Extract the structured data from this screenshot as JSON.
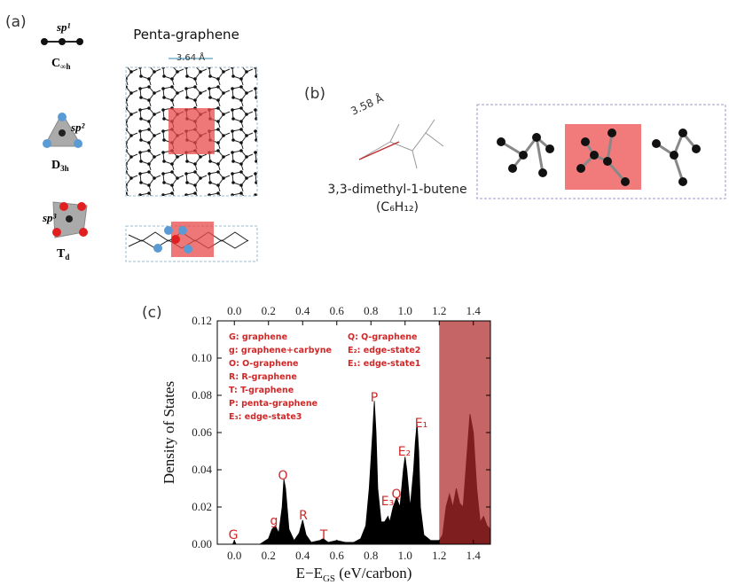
{
  "panel_a": {
    "label": "(a)",
    "hybrids": [
      {
        "sup": "sp¹",
        "sym": "C",
        "sub": "∞h"
      },
      {
        "sup": "sp²",
        "sym": "D",
        "sub": "3h"
      },
      {
        "sup": "sp³",
        "sym": "T",
        "sub": "d"
      }
    ],
    "title": "Penta-graphene",
    "distance": "3.64 Å"
  },
  "panel_b": {
    "label": "(b)",
    "distance": "3.58 Å",
    "molecule": "3,3-dimethyl-1-butene",
    "formula": "(C₆H₁₂)"
  },
  "chart_data": {
    "type": "area",
    "panel_label": "(c)",
    "ylabel": "Density of States",
    "xlabel": {
      "main": "E−E",
      "sub": "GS",
      "rest": " (eV/carbon)"
    },
    "color": "#000000",
    "highlight": [
      1.2,
      1.5
    ],
    "highlight_color": "#b02a2a",
    "xlim": [
      -0.1,
      1.5
    ],
    "ylim": [
      0,
      0.12
    ],
    "xticks": [
      {
        "value": 0,
        "label": "0.0"
      },
      0.2,
      0.4,
      0.6,
      0.8,
      {
        "value": 1,
        "label": "1.0"
      },
      1.2,
      1.4
    ],
    "yticks": [
      {
        "value": 0,
        "label": "0.00"
      },
      {
        "value": 0.02,
        "label": "0.02"
      },
      {
        "value": 0.04,
        "label": "0.04"
      },
      {
        "value": 0.06,
        "label": "0.06"
      },
      {
        "value": 0.08,
        "label": "0.08"
      },
      {
        "value": 0.1,
        "label": "0.10"
      },
      {
        "value": 0.12,
        "label": "0.12"
      }
    ],
    "x": [
      -0.05,
      -0.01,
      0.0,
      0.01,
      0.15,
      0.2,
      0.22,
      0.24,
      0.26,
      0.28,
      0.29,
      0.3,
      0.32,
      0.35,
      0.38,
      0.4,
      0.42,
      0.45,
      0.5,
      0.52,
      0.55,
      0.6,
      0.65,
      0.7,
      0.74,
      0.77,
      0.79,
      0.81,
      0.82,
      0.83,
      0.84,
      0.86,
      0.88,
      0.9,
      0.91,
      0.93,
      0.95,
      0.97,
      0.99,
      1.0,
      1.01,
      1.03,
      1.05,
      1.06,
      1.07,
      1.08,
      1.09,
      1.11,
      1.15,
      1.2,
      1.22,
      1.24,
      1.26,
      1.28,
      1.3,
      1.32,
      1.34,
      1.36,
      1.38,
      1.4,
      1.42,
      1.44,
      1.46,
      1.48,
      1.5
    ],
    "values": [
      0,
      0,
      0.002,
      0,
      0,
      0.003,
      0.008,
      0.01,
      0.006,
      0.02,
      0.035,
      0.03,
      0.008,
      0.002,
      0.006,
      0.013,
      0.005,
      0.001,
      0.002,
      0.003,
      0.001,
      0.002,
      0.001,
      0.001,
      0.003,
      0.01,
      0.03,
      0.06,
      0.077,
      0.06,
      0.03,
      0.012,
      0.012,
      0.015,
      0.012,
      0.02,
      0.025,
      0.02,
      0.04,
      0.047,
      0.04,
      0.02,
      0.04,
      0.055,
      0.065,
      0.05,
      0.02,
      0.005,
      0.002,
      0.002,
      0.005,
      0.02,
      0.027,
      0.02,
      0.03,
      0.022,
      0.02,
      0.045,
      0.07,
      0.06,
      0.03,
      0.012,
      0.015,
      0.01,
      0.008
    ],
    "annotations": [
      "G",
      "g",
      "O",
      "R",
      "T",
      "P",
      "E₃",
      "Q",
      "E₂",
      "E₁"
    ],
    "legend_left": [
      "G: graphene",
      "g: graphene+carbyne",
      "O: O-graphene",
      "R: R-graphene",
      "T: T-graphene",
      "P: penta-graphene",
      "E₃: edge-state3"
    ],
    "legend_right": [
      "Q: Q-graphene",
      "E₂: edge-state2",
      "E₁: edge-state1"
    ]
  }
}
